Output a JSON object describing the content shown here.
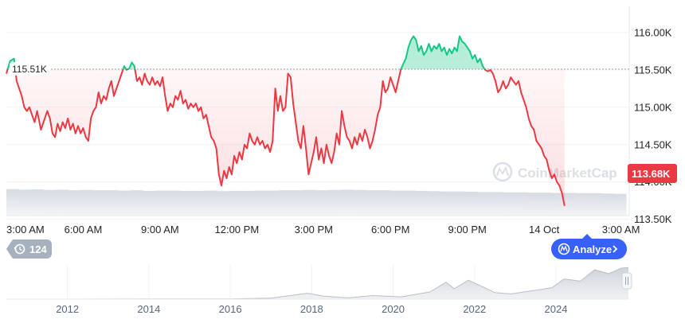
{
  "chart_data": {
    "type": "line",
    "y_unit_suffix": "K",
    "ylim": [
      113.55,
      116.35
    ],
    "y_ticks": [
      "116.00K",
      "115.50K",
      "115.00K",
      "114.50K",
      "114.00K",
      "113.50K"
    ],
    "y_tick_values": [
      116.0,
      115.5,
      115.0,
      114.5,
      114.0,
      113.5
    ],
    "x_ticks": [
      "3:00 AM",
      "6:00 AM",
      "9:00 AM",
      "12:00 PM",
      "3:00 PM",
      "6:00 PM",
      "9:00 PM",
      "14 Oct",
      "3:00 AM"
    ],
    "x_tick_hours": [
      0,
      3,
      6,
      9,
      12,
      15,
      18,
      21,
      24
    ],
    "x_range_hours": [
      0,
      24.2
    ],
    "reference_price": 115.51,
    "reference_label": "115.51K",
    "current_price_label": "113.68K",
    "up_color": "#16c784",
    "down_color": "#ea3943",
    "series": [
      {
        "points": [
          [
            0.0,
            115.45
          ],
          [
            0.15,
            115.62
          ],
          [
            0.3,
            115.65
          ],
          [
            0.4,
            115.35
          ],
          [
            0.5,
            115.25
          ],
          [
            0.6,
            115.15
          ],
          [
            0.7,
            115.0
          ],
          [
            0.8,
            114.95
          ],
          [
            0.9,
            115.0
          ],
          [
            1.0,
            114.9
          ],
          [
            1.1,
            114.8
          ],
          [
            1.2,
            114.95
          ],
          [
            1.35,
            114.7
          ],
          [
            1.5,
            114.85
          ],
          [
            1.6,
            114.95
          ],
          [
            1.7,
            114.85
          ],
          [
            1.8,
            114.65
          ],
          [
            1.9,
            114.6
          ],
          [
            2.0,
            114.78
          ],
          [
            2.1,
            114.68
          ],
          [
            2.2,
            114.8
          ],
          [
            2.3,
            114.72
          ],
          [
            2.4,
            114.85
          ],
          [
            2.5,
            114.7
          ],
          [
            2.6,
            114.78
          ],
          [
            2.7,
            114.65
          ],
          [
            2.8,
            114.75
          ],
          [
            2.9,
            114.65
          ],
          [
            3.0,
            114.72
          ],
          [
            3.1,
            114.6
          ],
          [
            3.2,
            114.55
          ],
          [
            3.3,
            114.85
          ],
          [
            3.4,
            114.95
          ],
          [
            3.5,
            115.0
          ],
          [
            3.6,
            115.2
          ],
          [
            3.7,
            115.05
          ],
          [
            3.8,
            115.15
          ],
          [
            3.9,
            115.1
          ],
          [
            4.0,
            115.25
          ],
          [
            4.1,
            115.35
          ],
          [
            4.2,
            115.15
          ],
          [
            4.3,
            115.25
          ],
          [
            4.4,
            115.35
          ],
          [
            4.5,
            115.45
          ],
          [
            4.6,
            115.55
          ],
          [
            4.7,
            115.5
          ],
          [
            4.8,
            115.52
          ],
          [
            4.9,
            115.6
          ],
          [
            5.0,
            115.55
          ],
          [
            5.1,
            115.35
          ],
          [
            5.2,
            115.4
          ],
          [
            5.3,
            115.3
          ],
          [
            5.4,
            115.45
          ],
          [
            5.5,
            115.35
          ],
          [
            5.6,
            115.3
          ],
          [
            5.7,
            115.4
          ],
          [
            5.8,
            115.3
          ],
          [
            5.9,
            115.35
          ],
          [
            6.0,
            115.28
          ],
          [
            6.1,
            115.4
          ],
          [
            6.2,
            115.15
          ],
          [
            6.3,
            114.95
          ],
          [
            6.4,
            115.05
          ],
          [
            6.5,
            115.0
          ],
          [
            6.6,
            115.15
          ],
          [
            6.7,
            115.1
          ],
          [
            6.8,
            115.22
          ],
          [
            6.9,
            115.05
          ],
          [
            7.0,
            115.1
          ],
          [
            7.1,
            114.98
          ],
          [
            7.2,
            115.05
          ],
          [
            7.3,
            115.0
          ],
          [
            7.4,
            115.05
          ],
          [
            7.5,
            114.95
          ],
          [
            7.6,
            115.0
          ],
          [
            7.7,
            114.85
          ],
          [
            7.8,
            114.9
          ],
          [
            7.9,
            114.75
          ],
          [
            8.0,
            114.6
          ],
          [
            8.1,
            114.55
          ],
          [
            8.2,
            114.45
          ],
          [
            8.3,
            114.1
          ],
          [
            8.4,
            113.95
          ],
          [
            8.5,
            114.15
          ],
          [
            8.6,
            114.05
          ],
          [
            8.7,
            114.2
          ],
          [
            8.8,
            114.1
          ],
          [
            8.9,
            114.35
          ],
          [
            9.0,
            114.25
          ],
          [
            9.1,
            114.4
          ],
          [
            9.2,
            114.3
          ],
          [
            9.3,
            114.5
          ],
          [
            9.4,
            114.45
          ],
          [
            9.5,
            114.65
          ],
          [
            9.6,
            114.55
          ],
          [
            9.7,
            114.5
          ],
          [
            9.8,
            114.6
          ],
          [
            9.9,
            114.5
          ],
          [
            10.0,
            114.55
          ],
          [
            10.1,
            114.45
          ],
          [
            10.2,
            114.5
          ],
          [
            10.3,
            114.4
          ],
          [
            10.4,
            114.55
          ],
          [
            10.5,
            115.25
          ],
          [
            10.6,
            114.95
          ],
          [
            10.7,
            115.15
          ],
          [
            10.8,
            114.95
          ],
          [
            10.9,
            115.0
          ],
          [
            11.0,
            115.45
          ],
          [
            11.1,
            115.4
          ],
          [
            11.2,
            115.05
          ],
          [
            11.3,
            114.8
          ],
          [
            11.4,
            114.55
          ],
          [
            11.5,
            114.45
          ],
          [
            11.6,
            114.75
          ],
          [
            11.7,
            114.45
          ],
          [
            11.8,
            114.1
          ],
          [
            11.9,
            114.25
          ],
          [
            12.0,
            114.4
          ],
          [
            12.1,
            114.6
          ],
          [
            12.2,
            114.3
          ],
          [
            12.3,
            114.45
          ],
          [
            12.4,
            114.25
          ],
          [
            12.5,
            114.5
          ],
          [
            12.6,
            114.35
          ],
          [
            12.7,
            114.25
          ],
          [
            12.8,
            114.4
          ],
          [
            12.9,
            114.65
          ],
          [
            13.0,
            114.5
          ],
          [
            13.1,
            114.95
          ],
          [
            13.2,
            114.75
          ],
          [
            13.3,
            114.6
          ],
          [
            13.4,
            114.55
          ],
          [
            13.5,
            114.45
          ],
          [
            13.6,
            114.6
          ],
          [
            13.7,
            114.5
          ],
          [
            13.8,
            114.65
          ],
          [
            13.9,
            114.55
          ],
          [
            14.0,
            114.7
          ],
          [
            14.1,
            114.6
          ],
          [
            14.2,
            114.45
          ],
          [
            14.3,
            114.55
          ],
          [
            14.4,
            114.7
          ],
          [
            14.5,
            114.9
          ],
          [
            14.6,
            115.0
          ],
          [
            14.7,
            115.35
          ],
          [
            14.8,
            115.2
          ],
          [
            14.9,
            115.25
          ],
          [
            15.0,
            115.4
          ],
          [
            15.1,
            115.3
          ],
          [
            15.2,
            115.2
          ],
          [
            15.3,
            115.35
          ],
          [
            15.4,
            115.5
          ],
          [
            15.5,
            115.58
          ],
          [
            15.6,
            115.65
          ],
          [
            15.7,
            115.8
          ],
          [
            15.8,
            115.9
          ],
          [
            15.9,
            115.95
          ],
          [
            16.0,
            115.9
          ],
          [
            16.1,
            115.75
          ],
          [
            16.2,
            115.82
          ],
          [
            16.3,
            115.7
          ],
          [
            16.4,
            115.75
          ],
          [
            16.5,
            115.85
          ],
          [
            16.6,
            115.75
          ],
          [
            16.7,
            115.82
          ],
          [
            16.8,
            115.78
          ],
          [
            16.9,
            115.85
          ],
          [
            17.0,
            115.75
          ],
          [
            17.1,
            115.8
          ],
          [
            17.2,
            115.7
          ],
          [
            17.3,
            115.78
          ],
          [
            17.4,
            115.72
          ],
          [
            17.5,
            115.8
          ],
          [
            17.6,
            115.75
          ],
          [
            17.7,
            115.95
          ],
          [
            17.8,
            115.88
          ],
          [
            17.9,
            115.85
          ],
          [
            18.0,
            115.8
          ],
          [
            18.1,
            115.75
          ],
          [
            18.2,
            115.65
          ],
          [
            18.3,
            115.7
          ],
          [
            18.4,
            115.6
          ],
          [
            18.5,
            115.65
          ],
          [
            18.6,
            115.55
          ],
          [
            18.7,
            115.5
          ],
          [
            18.8,
            115.48
          ],
          [
            18.9,
            115.5
          ],
          [
            19.0,
            115.45
          ],
          [
            19.1,
            115.35
          ],
          [
            19.2,
            115.2
          ],
          [
            19.3,
            115.25
          ],
          [
            19.4,
            115.35
          ],
          [
            19.5,
            115.25
          ],
          [
            19.6,
            115.3
          ],
          [
            19.7,
            115.4
          ],
          [
            19.8,
            115.35
          ],
          [
            19.9,
            115.3
          ],
          [
            20.0,
            115.35
          ],
          [
            20.1,
            115.2
          ],
          [
            20.2,
            115.1
          ],
          [
            20.3,
            115.0
          ],
          [
            20.4,
            114.85
          ],
          [
            20.5,
            114.75
          ],
          [
            20.6,
            114.7
          ],
          [
            20.7,
            114.55
          ],
          [
            20.8,
            114.5
          ],
          [
            20.9,
            114.45
          ],
          [
            21.0,
            114.35
          ],
          [
            21.1,
            114.3
          ],
          [
            21.2,
            114.15
          ],
          [
            21.3,
            114.05
          ],
          [
            21.4,
            114.1
          ],
          [
            21.5,
            114.0
          ],
          [
            21.6,
            113.95
          ],
          [
            21.7,
            113.85
          ],
          [
            21.8,
            113.68
          ]
        ]
      }
    ],
    "volume": {
      "values": [
        0.9,
        0.88,
        0.89,
        0.87,
        0.88,
        0.86,
        0.87,
        0.86,
        0.86,
        0.85,
        0.86,
        0.84,
        0.85,
        0.85,
        0.84,
        0.84,
        0.85,
        0.83,
        0.84,
        0.84,
        0.85,
        0.85,
        0.86,
        0.86,
        0.87,
        0.86,
        0.87,
        0.88,
        0.87,
        0.86,
        0.86,
        0.85,
        0.85,
        0.84,
        0.83,
        0.82,
        0.82,
        0.81,
        0.8,
        0.8,
        0.79,
        0.79,
        0.78,
        0.78,
        0.77,
        0.77,
        0.76,
        0.76,
        0.75,
        0.74
      ]
    },
    "watermark": "CoinMarketCap"
  },
  "badge": {
    "count": "124"
  },
  "analyze_button": {
    "label": "Analyze"
  },
  "overview": {
    "year_ticks": [
      "2012",
      "2014",
      "2016",
      "2018",
      "2020",
      "2022",
      "2024"
    ],
    "year_tick_values": [
      2012,
      2014,
      2016,
      2018,
      2020,
      2022,
      2024
    ],
    "year_range": [
      2010.5,
      2025.8
    ],
    "values": [
      [
        2010.5,
        0.0
      ],
      [
        2012.0,
        0.0
      ],
      [
        2013.8,
        0.005
      ],
      [
        2016.0,
        0.007
      ],
      [
        2017.0,
        0.03
      ],
      [
        2017.9,
        0.18
      ],
      [
        2018.3,
        0.09
      ],
      [
        2018.9,
        0.04
      ],
      [
        2019.5,
        0.11
      ],
      [
        2020.2,
        0.07
      ],
      [
        2020.9,
        0.22
      ],
      [
        2021.3,
        0.52
      ],
      [
        2021.5,
        0.32
      ],
      [
        2021.85,
        0.58
      ],
      [
        2022.2,
        0.38
      ],
      [
        2022.5,
        0.2
      ],
      [
        2022.9,
        0.16
      ],
      [
        2023.5,
        0.27
      ],
      [
        2023.9,
        0.35
      ],
      [
        2024.2,
        0.62
      ],
      [
        2024.6,
        0.55
      ],
      [
        2024.95,
        0.9
      ],
      [
        2025.3,
        0.78
      ],
      [
        2025.6,
        0.95
      ],
      [
        2025.78,
        0.97
      ]
    ]
  }
}
